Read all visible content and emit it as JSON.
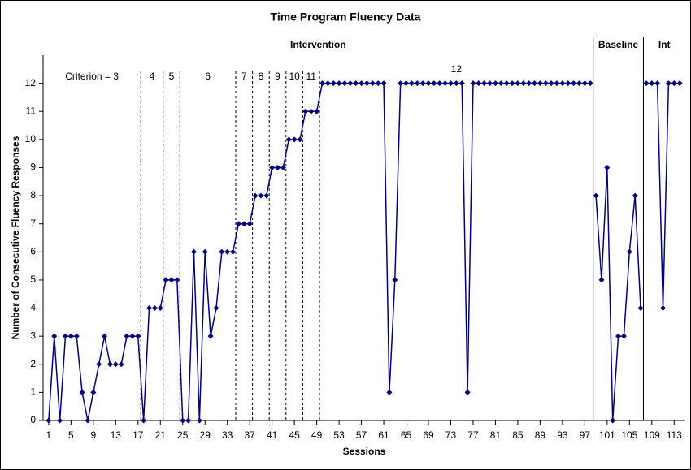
{
  "chart_data": {
    "type": "line",
    "title": "Time Program Fluency Data",
    "x_label": "Sessions",
    "y_label": "Number of Consecutive Fluency Responses",
    "color": "#000080",
    "xlim": [
      0,
      115
    ],
    "ylim": [
      0,
      13
    ],
    "xticks": [
      1,
      5,
      9,
      13,
      17,
      21,
      25,
      29,
      33,
      37,
      41,
      45,
      49,
      53,
      57,
      61,
      65,
      69,
      73,
      77,
      81,
      85,
      89,
      93,
      97,
      101,
      105,
      109,
      113
    ],
    "yticks": [
      0,
      1,
      2,
      3,
      4,
      5,
      6,
      7,
      8,
      9,
      10,
      11,
      12
    ],
    "criterion_changes": [
      17.5,
      21.5,
      24.5,
      34.5,
      37.5,
      40.5,
      43.5,
      46.5,
      49.5
    ],
    "criterion_labels": [
      "Criterion = 3",
      "4",
      "5",
      "6",
      "7",
      "8",
      "9",
      "10",
      "11",
      "12"
    ],
    "phases": [
      {
        "label": "Intervention",
        "end": 98.5
      },
      {
        "label": "Baseline",
        "end": 107.5
      },
      {
        "label": "Int"
      }
    ],
    "series": [
      {
        "x": [
          1,
          2,
          3,
          4,
          5,
          6,
          7,
          8,
          9,
          10,
          11,
          12,
          13,
          14,
          15,
          16,
          17,
          18,
          19,
          20,
          21,
          22,
          23,
          24,
          25,
          26,
          27,
          28,
          29,
          30,
          31,
          32,
          33,
          34,
          35,
          36,
          37,
          38,
          39,
          40,
          41,
          42,
          43,
          44,
          45,
          46,
          47,
          48,
          49,
          50,
          51,
          52,
          53,
          54,
          55,
          56,
          57,
          58,
          59,
          60,
          61,
          62,
          63,
          64,
          65,
          66,
          67,
          68,
          69,
          70,
          71,
          72,
          73,
          74,
          75,
          76,
          77,
          78,
          79,
          80,
          81,
          82,
          83,
          84,
          85,
          86,
          87,
          88,
          89,
          90,
          91,
          92,
          93,
          94,
          95,
          96,
          97,
          98
        ],
        "values": [
          0,
          3,
          0,
          3,
          3,
          3,
          1,
          0,
          1,
          2,
          3,
          2,
          2,
          2,
          3,
          3,
          3,
          0,
          4,
          4,
          4,
          5,
          5,
          5,
          0,
          0,
          6,
          0,
          6,
          3,
          4,
          6,
          6,
          6,
          7,
          7,
          7,
          8,
          8,
          8,
          9,
          9,
          9,
          10,
          10,
          10,
          11,
          11,
          11,
          12,
          12,
          12,
          12,
          12,
          12,
          12,
          12,
          12,
          12,
          12,
          12,
          1,
          5,
          12,
          12,
          12,
          12,
          12,
          12,
          12,
          12,
          12,
          12,
          12,
          12,
          1,
          12,
          12,
          12,
          12,
          12,
          12,
          12,
          12,
          12,
          12,
          12,
          12,
          12,
          12,
          12,
          12,
          12,
          12,
          12,
          12,
          12,
          12
        ]
      },
      {
        "x": [
          99,
          100,
          101,
          102,
          103,
          104,
          105,
          106,
          107
        ],
        "values": [
          8,
          5,
          9,
          0,
          3,
          3,
          6,
          8,
          4
        ]
      },
      {
        "x": [
          108,
          109,
          110,
          111,
          112,
          113,
          114
        ],
        "values": [
          12,
          12,
          12,
          4,
          12,
          12,
          12
        ]
      }
    ]
  }
}
